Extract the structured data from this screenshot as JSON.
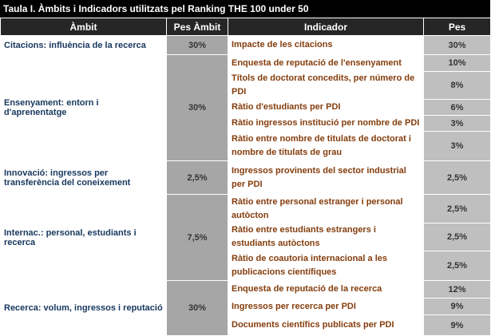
{
  "title": "Taula I. Àmbits i Indicadors utilitzats pel Ranking THE 100 under 50",
  "table": {
    "header": [
      "Àmbit",
      "Pes Àmbit",
      "Indicador",
      "Pes"
    ],
    "groups": [
      {
        "ambit": "Citacions: influència de la recerca",
        "pes": "30%",
        "indicators": [
          {
            "name": "Impacte de les citacions",
            "pes": "30%"
          }
        ]
      },
      {
        "ambit": "Ensenyament: entorn i d'aprenentatge",
        "pes": "30%",
        "indicators": [
          {
            "name": "Enquesta de reputació de l'ensenyament",
            "pes": "10%"
          },
          {
            "name": "Títols de doctorat concedits, per número de PDI",
            "pes": "8%"
          },
          {
            "name": "Ràtio d'estudiants per PDI",
            "pes": "6%"
          },
          {
            "name": "Ràtio ingressos institució per nombre de PDI",
            "pes": "3%"
          },
          {
            "name": "Ràtio entre nombre de titulats de doctorat i nombre de titulats de grau",
            "pes": "3%"
          }
        ]
      },
      {
        "ambit": "Innovació: ingressos per transferència del coneixement",
        "pes": "2,5%",
        "indicators": [
          {
            "name": "Ingressos provinents del sector industrial per PDI",
            "pes": "2,5%"
          }
        ]
      },
      {
        "ambit": "Internac.: personal, estudiants i recerca",
        "pes": "7,5%",
        "indicators": [
          {
            "name": "Ràtio entre personal estranger i personal autòcton",
            "pes": "2,5%"
          },
          {
            "name": "Ràtio entre estudiants estrangers i estudiants autòctons",
            "pes": "2,5%"
          },
          {
            "name": "Ràtio de coautoria internacional a les publicacions científiques",
            "pes": "2,5%"
          }
        ]
      },
      {
        "ambit": "Recerca: volum, ingressos i reputació",
        "pes": "30%",
        "indicators": [
          {
            "name": "Enquesta de reputació de la recerca",
            "pes": "12%"
          },
          {
            "name": "Ingressos per recerca per PDI",
            "pes": "9%"
          },
          {
            "name": "Documents científics publicats per PDI",
            "pes": "9%"
          }
        ]
      }
    ]
  }
}
